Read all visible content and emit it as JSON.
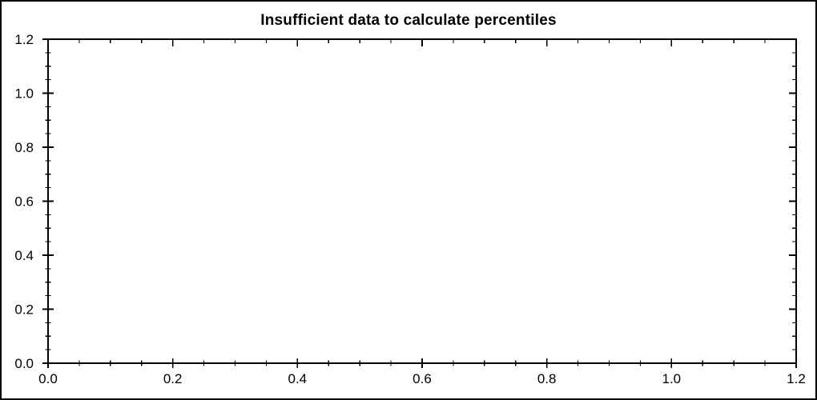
{
  "page": {
    "background": "#ffffff",
    "frame_border_color": "#000000"
  },
  "chart_data": {
    "type": "scatter",
    "title": "Insufficient data to calculate percentiles",
    "series": [],
    "xlabel": "",
    "ylabel": "",
    "xlim": [
      0.0,
      1.2
    ],
    "ylim": [
      0.0,
      1.2
    ],
    "x_major_step": 0.2,
    "y_major_step": 0.2,
    "x_minor_step": 0.05,
    "y_minor_step": 0.05,
    "x_tick_labels": [
      "0.0",
      "0.2",
      "0.4",
      "0.6",
      "0.8",
      "1.0",
      "1.2"
    ],
    "y_tick_labels": [
      "0.0",
      "0.2",
      "0.4",
      "0.6",
      "0.8",
      "1.0",
      "1.2"
    ],
    "grid": false,
    "legend": "none",
    "axis_color": "#000000",
    "text_color": "#000000",
    "plot_background": "#ffffff"
  }
}
